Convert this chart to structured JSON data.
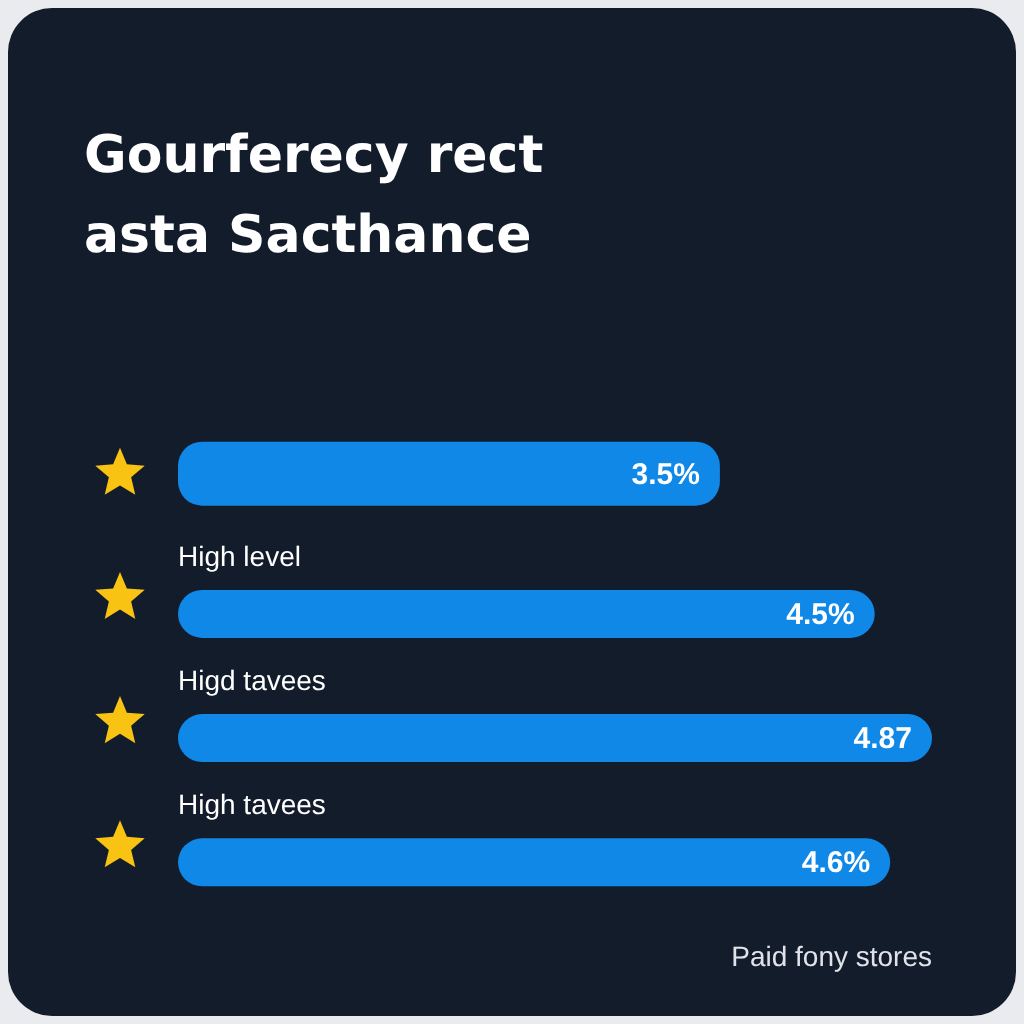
{
  "chart_data": {
    "type": "bar",
    "orientation": "horizontal",
    "title": "Gourferecy rect asta Sacthance",
    "categories": [
      null,
      "High level",
      "Higd tavees",
      "High tavees"
    ],
    "values": [
      3.5,
      4.5,
      4.87,
      4.6
    ],
    "value_labels": [
      "3.5%",
      "4.5%",
      "4.87",
      "4.6%"
    ],
    "color": "#1088e8",
    "annotations": [
      "Paid fony stores"
    ]
  }
}
